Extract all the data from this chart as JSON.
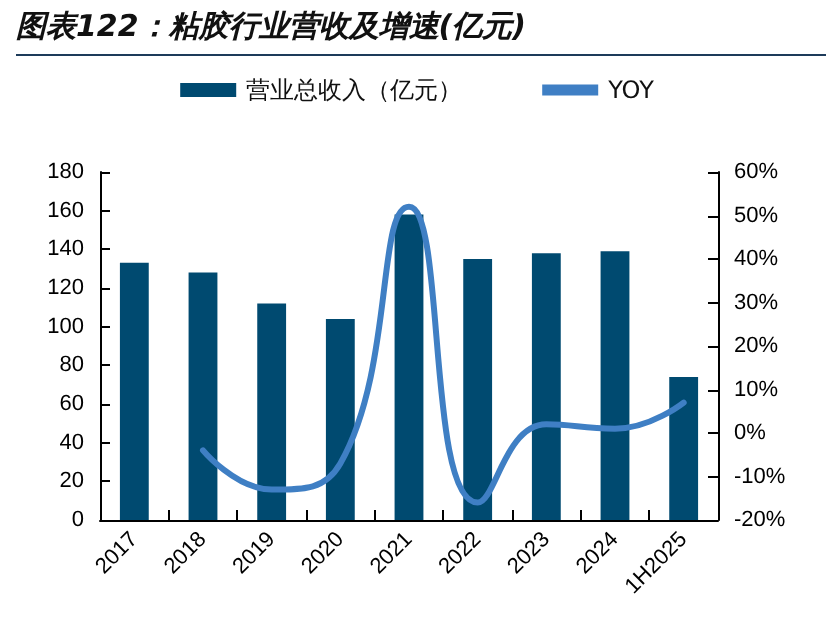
{
  "chart_data": {
    "type": "bar",
    "title": "图表122：粘胶行业营收及增速(亿元)",
    "categories": [
      "2017",
      "2018",
      "2019",
      "2020",
      "2021",
      "2022",
      "2023",
      "2024",
      "1H2025"
    ],
    "series": [
      {
        "name": "营业总收入（亿元）",
        "color": "#004a70",
        "values": [
          133,
          128,
          112,
          104,
          158,
          135,
          138,
          139,
          74
        ]
      },
      {
        "name": "YOY",
        "type": "line",
        "axis": "y2",
        "color": "#3f7fc4",
        "marker": "none",
        "values": [
          null,
          -4,
          -13,
          -7,
          52,
          -16,
          2,
          1,
          7
        ]
      }
    ],
    "ylim": [
      0,
      180
    ],
    "yticks": [
      0,
      20,
      40,
      60,
      80,
      100,
      120,
      140,
      160,
      180
    ],
    "y2lim": [
      -20,
      60
    ],
    "y2ticks": [
      {
        "value": -20,
        "label": "-20%"
      },
      {
        "value": -10,
        "label": "-10%"
      },
      {
        "value": 0,
        "label": "0%"
      },
      {
        "value": 10,
        "label": "10%"
      },
      {
        "value": 20,
        "label": "20%"
      },
      {
        "value": 30,
        "label": "30%"
      },
      {
        "value": 40,
        "label": "40%"
      },
      {
        "value": 50,
        "label": "50%"
      },
      {
        "value": 60,
        "label": "60%"
      }
    ],
    "grid": false,
    "legend": "top"
  }
}
